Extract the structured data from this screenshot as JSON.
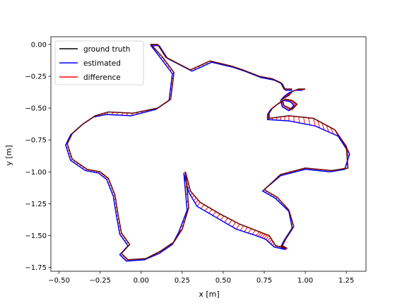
{
  "chart_data": {
    "type": "line",
    "xlabel": "x [m]",
    "ylabel": "y [m]",
    "xlim": [
      -0.55,
      1.37
    ],
    "ylim": [
      -1.78,
      0.06
    ],
    "xticks": [
      -0.5,
      -0.25,
      0.0,
      0.25,
      0.5,
      0.75,
      1.0,
      1.25
    ],
    "xtick_labels": [
      "−0.50",
      "−0.25",
      "0.00",
      "0.25",
      "0.50",
      "0.75",
      "1.00",
      "1.25"
    ],
    "yticks": [
      0.0,
      -0.25,
      -0.5,
      -0.75,
      -1.0,
      -1.25,
      -1.5,
      -1.75
    ],
    "ytick_labels": [
      "0.00",
      "−0.25",
      "−0.50",
      "−0.75",
      "−1.00",
      "−1.25",
      "−1.50",
      "−1.75"
    ],
    "grid": false,
    "legend_position": "top-left",
    "legend": [
      "ground truth",
      "estimated",
      "difference"
    ],
    "colors": {
      "ground_truth": "#000000",
      "estimated": "#0000ff",
      "difference": "#ff0000"
    },
    "series": [
      {
        "name": "ground truth",
        "x": [
          1.0,
          0.96,
          0.92,
          0.9,
          0.86,
          0.87,
          0.92,
          0.95,
          0.92,
          0.88,
          0.84,
          0.8,
          0.78,
          0.78,
          0.9,
          1.05,
          1.18,
          1.25,
          1.26,
          1.16,
          1.0,
          0.85,
          0.75,
          0.83,
          0.9,
          0.93,
          0.88,
          0.86,
          0.89,
          0.82,
          0.78,
          0.72,
          0.6,
          0.48,
          0.36,
          0.3,
          0.27,
          0.29,
          0.25,
          0.2,
          0.12,
          0.03,
          -0.08,
          -0.12,
          -0.07,
          -0.12,
          -0.14,
          -0.16,
          -0.2,
          -0.25,
          -0.33,
          -0.42,
          -0.45,
          -0.42,
          -0.35,
          -0.28,
          -0.2,
          -0.05,
          0.1,
          0.18,
          0.2,
          0.13,
          0.06,
          0.1,
          0.15,
          0.3,
          0.42,
          0.55,
          0.62,
          0.72,
          0.8,
          0.85,
          0.87,
          0.92
        ],
        "y": [
          -0.35,
          -0.35,
          -0.37,
          -0.4,
          -0.43,
          -0.48,
          -0.51,
          -0.47,
          -0.44,
          -0.43,
          -0.46,
          -0.5,
          -0.54,
          -0.58,
          -0.56,
          -0.58,
          -0.67,
          -0.8,
          -0.97,
          -0.99,
          -0.97,
          -1.02,
          -1.14,
          -1.2,
          -1.3,
          -1.43,
          -1.53,
          -1.58,
          -1.6,
          -1.58,
          -1.5,
          -1.47,
          -1.41,
          -1.33,
          -1.24,
          -1.15,
          -1.0,
          -1.28,
          -1.45,
          -1.55,
          -1.62,
          -1.68,
          -1.69,
          -1.64,
          -1.57,
          -1.48,
          -1.34,
          -1.18,
          -1.05,
          -1.0,
          -0.98,
          -0.9,
          -0.78,
          -0.7,
          -0.62,
          -0.56,
          -0.53,
          -0.54,
          -0.5,
          -0.43,
          -0.22,
          -0.1,
          0.0,
          0.0,
          -0.1,
          -0.2,
          -0.13,
          -0.17,
          -0.2,
          -0.25,
          -0.27,
          -0.3,
          -0.35,
          -0.35
        ]
      },
      {
        "name": "estimated",
        "x": [
          0.98,
          0.94,
          0.9,
          0.87,
          0.85,
          0.86,
          0.9,
          0.93,
          0.91,
          0.87,
          0.83,
          0.79,
          0.77,
          0.77,
          0.9,
          1.06,
          1.2,
          1.27,
          1.24,
          1.15,
          1.0,
          0.85,
          0.74,
          0.82,
          0.9,
          0.92,
          0.87,
          0.85,
          0.88,
          0.81,
          0.76,
          0.7,
          0.58,
          0.46,
          0.34,
          0.29,
          0.26,
          0.28,
          0.23,
          0.19,
          0.11,
          0.02,
          -0.09,
          -0.13,
          -0.08,
          -0.13,
          -0.15,
          -0.17,
          -0.21,
          -0.26,
          -0.34,
          -0.43,
          -0.46,
          -0.43,
          -0.36,
          -0.29,
          -0.21,
          -0.06,
          0.09,
          0.17,
          0.19,
          0.12,
          0.06,
          0.11,
          0.16,
          0.31,
          0.43,
          0.56,
          0.63,
          0.73,
          0.81,
          0.86,
          0.88,
          0.92
        ],
        "y": [
          -0.36,
          -0.36,
          -0.38,
          -0.41,
          -0.44,
          -0.49,
          -0.52,
          -0.48,
          -0.45,
          -0.44,
          -0.47,
          -0.51,
          -0.55,
          -0.59,
          -0.6,
          -0.64,
          -0.72,
          -0.86,
          -0.98,
          -1.0,
          -0.98,
          -1.03,
          -1.15,
          -1.21,
          -1.31,
          -1.44,
          -1.54,
          -1.59,
          -1.61,
          -1.59,
          -1.53,
          -1.5,
          -1.45,
          -1.36,
          -1.27,
          -1.16,
          -1.01,
          -1.3,
          -1.47,
          -1.57,
          -1.64,
          -1.69,
          -1.7,
          -1.65,
          -1.58,
          -1.49,
          -1.35,
          -1.19,
          -1.06,
          -1.01,
          -0.99,
          -0.91,
          -0.79,
          -0.71,
          -0.63,
          -0.57,
          -0.55,
          -0.56,
          -0.51,
          -0.44,
          -0.23,
          -0.11,
          -0.01,
          -0.01,
          -0.11,
          -0.21,
          -0.14,
          -0.18,
          -0.21,
          -0.26,
          -0.28,
          -0.31,
          -0.36,
          -0.36
        ]
      }
    ]
  }
}
